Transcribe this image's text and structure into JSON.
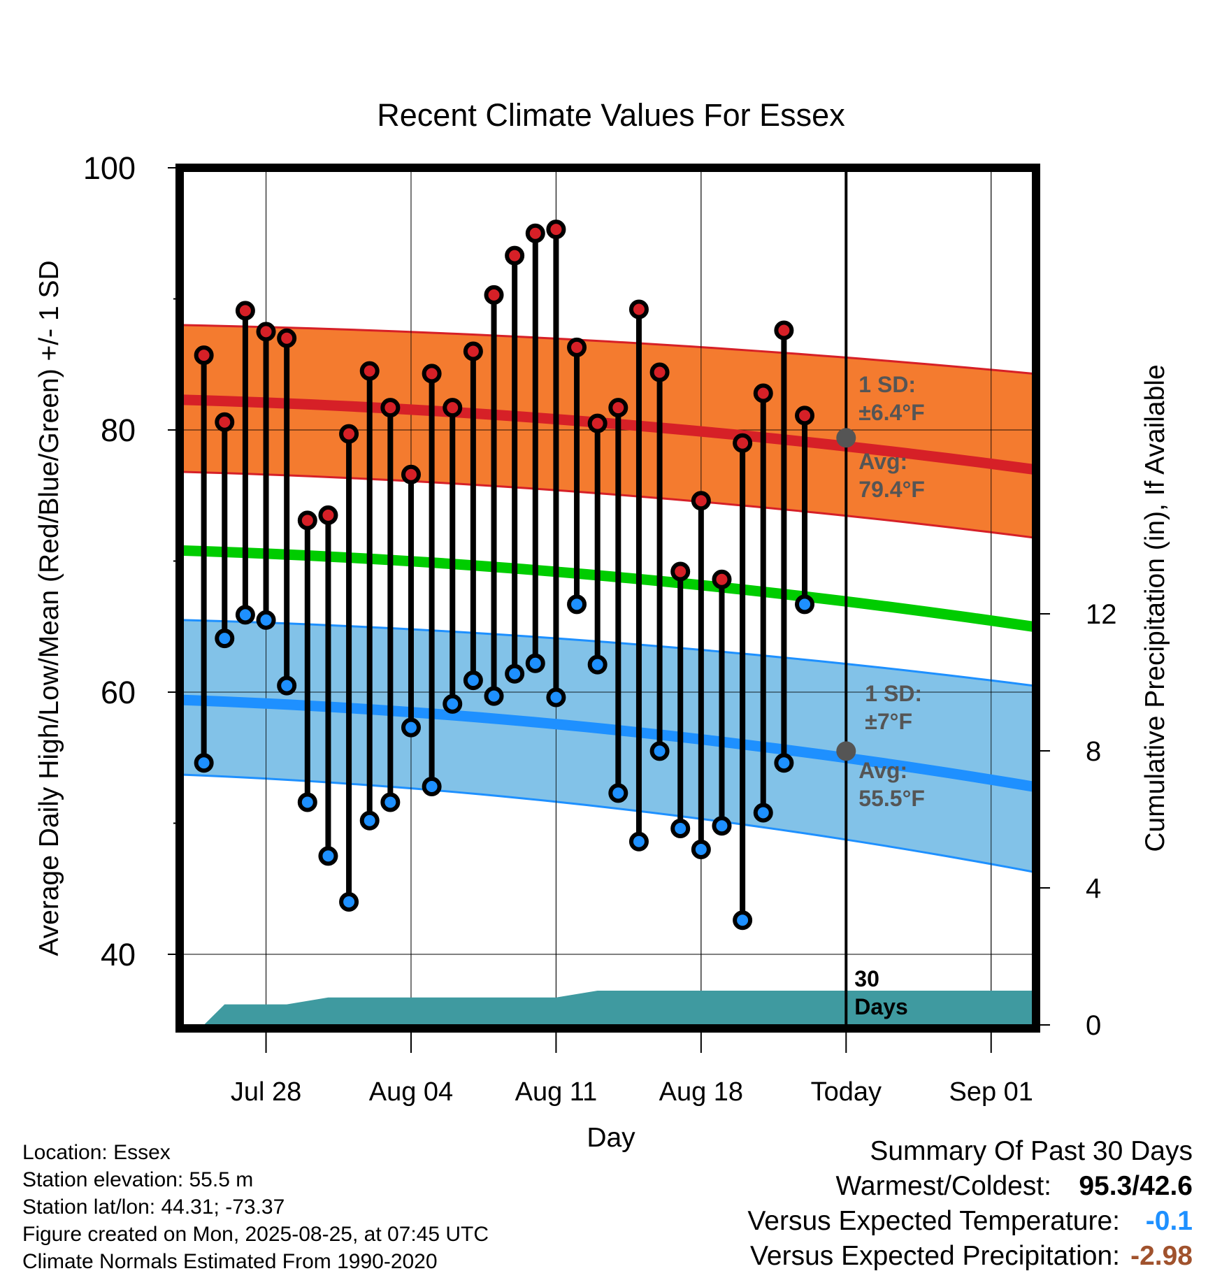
{
  "chart_data": {
    "type": "line",
    "title": "Recent Climate Values For Essex",
    "xlabel": "Day",
    "ylabel": "Average Daily High/Low/Mean (Red/Blue/Green) +/- 1 SD",
    "y2label": "Cumulative Precipitation (in), If Available",
    "ylim": [
      35,
      100
    ],
    "y_ticks": [
      "100",
      "80",
      "60",
      "40"
    ],
    "y2lim": [
      0,
      23
    ],
    "y2_ticks": [
      "12",
      "8",
      "4",
      "0"
    ],
    "x_ticks": [
      "Jul 28",
      "Aug 04",
      "Aug 11",
      "Aug 18",
      "Today",
      "Sep 01"
    ],
    "x_dates": [
      "2025-07-25",
      "2025-07-26",
      "2025-07-27",
      "2025-07-28",
      "2025-07-29",
      "2025-07-30",
      "2025-07-31",
      "2025-08-01",
      "2025-08-02",
      "2025-08-03",
      "2025-08-04",
      "2025-08-05",
      "2025-08-06",
      "2025-08-07",
      "2025-08-08",
      "2025-08-09",
      "2025-08-10",
      "2025-08-11",
      "2025-08-12",
      "2025-08-13",
      "2025-08-14",
      "2025-08-15",
      "2025-08-16",
      "2025-08-17",
      "2025-08-18",
      "2025-08-19",
      "2025-08-20",
      "2025-08-21",
      "2025-08-22",
      "2025-08-23",
      "2025-08-24"
    ],
    "daily_high": [
      85.7,
      80.6,
      89.1,
      87.5,
      87.0,
      73.1,
      73.5,
      79.7,
      84.5,
      81.7,
      76.6,
      84.3,
      81.7,
      86.0,
      90.3,
      93.3,
      95.0,
      95.3,
      86.3,
      80.5,
      81.7,
      89.2,
      84.4,
      69.2,
      74.6,
      68.6,
      79.0,
      82.8,
      87.6,
      81.1,
      null
    ],
    "daily_low": [
      54.6,
      64.1,
      65.9,
      65.5,
      60.5,
      51.6,
      47.5,
      44.0,
      50.2,
      51.6,
      57.3,
      52.8,
      59.1,
      60.9,
      59.7,
      61.4,
      62.2,
      59.6,
      66.7,
      62.1,
      52.3,
      48.6,
      55.5,
      49.6,
      48.0,
      49.8,
      42.6,
      50.8,
      54.6,
      66.7,
      null
    ],
    "normal_high_dates": [
      "2025-07-24",
      "2025-09-03"
    ],
    "normal_high": [
      82.3,
      77.0
    ],
    "normal_high_sd_upper": [
      88.0,
      84.3
    ],
    "normal_high_sd_lower": [
      76.8,
      71.8
    ],
    "normal_mean": [
      70.8,
      65.0
    ],
    "normal_low": [
      59.4,
      52.8
    ],
    "normal_low_sd_upper": [
      65.5,
      60.5
    ],
    "normal_low_sd_lower": [
      53.7,
      46.3
    ],
    "cumulative_precip_dates": [
      "2025-07-25",
      "2025-07-26",
      "2025-07-29",
      "2025-07-31",
      "2025-08-11",
      "2025-08-12",
      "2025-08-13",
      "2025-09-03"
    ],
    "cumulative_precip": [
      0.0,
      0.6,
      0.6,
      0.8,
      0.8,
      0.9,
      1.0,
      1.0
    ],
    "annotations": {
      "high_sd": "1 SD:\n±6.4°F",
      "high_avg": "Avg:\n79.4°F",
      "low_sd": "1 SD:\n±7°F",
      "low_avg": "Avg:\n55.5°F",
      "today_marker": "30\nDays"
    },
    "grid": true,
    "colors": {
      "high_band": "#f47b2f",
      "high_line": "#d62027",
      "high_point": "#d62027",
      "mean_line": "#00cc00",
      "low_band": "#82c2e8",
      "low_line": "#1e90ff",
      "low_point": "#1e90ff",
      "precip_fill": "#3f9aa0",
      "avg_marker": "#555555",
      "annotation_text": "#555555"
    }
  },
  "footer": {
    "location": "Location: Essex",
    "elevation": "Station elevation: 55.5 m",
    "latlon": "Station lat/lon: 44.31; -73.37",
    "created": "Figure created on Mon, 2025-08-25, at 07:45 UTC",
    "normals": "Climate Normals Estimated From 1990-2020"
  },
  "summary": {
    "heading": "Summary Of Past 30 Days",
    "warmest_coldest_label": "Warmest/Coldest:",
    "warmest_coldest_value": "95.3/42.6",
    "temp_label": "Versus Expected Temperature:",
    "temp_value": "-0.1",
    "temp_color": "#1e90ff",
    "precip_label": "Versus Expected Precipitation:",
    "precip_value": "-2.98",
    "precip_color": "#a0522d"
  }
}
